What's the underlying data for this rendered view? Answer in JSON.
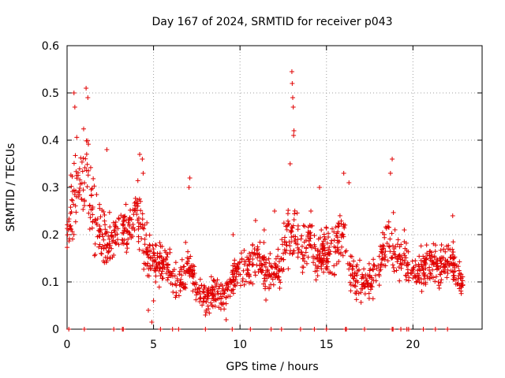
{
  "chart_data": {
    "type": "scatter",
    "title": "Day 167 of 2024, SRMTID for receiver p043",
    "xlabel": "GPS time / hours",
    "ylabel": "SRMTID / TECUs",
    "xlim": [
      0,
      24
    ],
    "ylim": [
      0,
      0.6
    ],
    "xticks": [
      0,
      5,
      10,
      15,
      20
    ],
    "xtick_labels": [
      "0",
      "5",
      "10",
      "15",
      "20"
    ],
    "yticks": [
      0,
      0.1,
      0.2,
      0.3,
      0.4,
      0.5,
      0.6
    ],
    "ytick_labels": [
      "0",
      "0.1",
      "0.2",
      "0.3",
      "0.4",
      "0.5",
      "0.6"
    ],
    "grid": true,
    "marker": "plus",
    "color": "#e00000",
    "series": [
      {
        "name": "p043",
        "envelope_hours": [
          0.0,
          0.5,
          1.0,
          1.5,
          2.0,
          2.5,
          3.0,
          3.5,
          4.0,
          4.5,
          5.0,
          5.5,
          6.0,
          6.5,
          7.0,
          7.5,
          8.0,
          8.5,
          9.0,
          9.5,
          10.0,
          10.5,
          11.0,
          11.5,
          12.0,
          12.5,
          13.0,
          13.5,
          14.0,
          14.5,
          15.0,
          15.5,
          16.0,
          16.5,
          17.0,
          17.5,
          18.0,
          18.5,
          19.0,
          19.5,
          20.0,
          20.5,
          21.0,
          21.5,
          22.0,
          22.5,
          22.9
        ],
        "center_values": [
          0.2,
          0.3,
          0.35,
          0.25,
          0.2,
          0.18,
          0.21,
          0.2,
          0.26,
          0.18,
          0.14,
          0.15,
          0.12,
          0.1,
          0.14,
          0.09,
          0.06,
          0.08,
          0.07,
          0.1,
          0.14,
          0.13,
          0.16,
          0.12,
          0.11,
          0.15,
          0.22,
          0.16,
          0.19,
          0.15,
          0.17,
          0.16,
          0.2,
          0.12,
          0.1,
          0.1,
          0.13,
          0.2,
          0.16,
          0.15,
          0.12,
          0.13,
          0.14,
          0.13,
          0.15,
          0.12,
          0.09
        ],
        "spread_values": [
          0.05,
          0.08,
          0.08,
          0.07,
          0.05,
          0.05,
          0.04,
          0.05,
          0.06,
          0.05,
          0.04,
          0.04,
          0.04,
          0.04,
          0.05,
          0.03,
          0.03,
          0.03,
          0.03,
          0.03,
          0.04,
          0.04,
          0.04,
          0.04,
          0.03,
          0.05,
          0.06,
          0.05,
          0.05,
          0.04,
          0.04,
          0.05,
          0.05,
          0.04,
          0.03,
          0.03,
          0.04,
          0.06,
          0.05,
          0.04,
          0.03,
          0.04,
          0.04,
          0.04,
          0.04,
          0.04,
          0.03
        ],
        "outlier_points": [
          [
            0.4,
            0.5
          ],
          [
            0.45,
            0.47
          ],
          [
            1.1,
            0.51
          ],
          [
            1.2,
            0.49
          ],
          [
            13.0,
            0.545
          ],
          [
            13.02,
            0.52
          ],
          [
            13.05,
            0.49
          ],
          [
            13.08,
            0.47
          ],
          [
            13.1,
            0.41
          ],
          [
            13.12,
            0.42
          ],
          [
            12.9,
            0.35
          ],
          [
            18.8,
            0.36
          ],
          [
            18.7,
            0.33
          ],
          [
            4.2,
            0.37
          ],
          [
            4.35,
            0.36
          ],
          [
            4.4,
            0.33
          ],
          [
            2.3,
            0.38
          ],
          [
            7.1,
            0.32
          ],
          [
            7.05,
            0.3
          ],
          [
            14.6,
            0.3
          ],
          [
            16.0,
            0.33
          ],
          [
            16.3,
            0.31
          ],
          [
            4.7,
            0.04
          ],
          [
            4.9,
            0.015
          ],
          [
            5.0,
            0.06
          ],
          [
            8.0,
            0.03
          ],
          [
            9.2,
            0.02
          ],
          [
            9.6,
            0.2
          ],
          [
            10.9,
            0.23
          ],
          [
            11.4,
            0.21
          ],
          [
            12.0,
            0.25
          ],
          [
            14.1,
            0.25
          ],
          [
            19.5,
            0.21
          ],
          [
            22.3,
            0.24
          ]
        ],
        "zero_points_hours": [
          0.1,
          1.0,
          2.7,
          3.2,
          3.25,
          5.4,
          6.1,
          6.45,
          8.0,
          9.55,
          10.6,
          11.8,
          12.4,
          13.5,
          14.3,
          15.0,
          16.1,
          16.15,
          17.2,
          18.8,
          18.85,
          19.3,
          19.65,
          19.75,
          20.6,
          21.3,
          22.0
        ]
      }
    ]
  }
}
